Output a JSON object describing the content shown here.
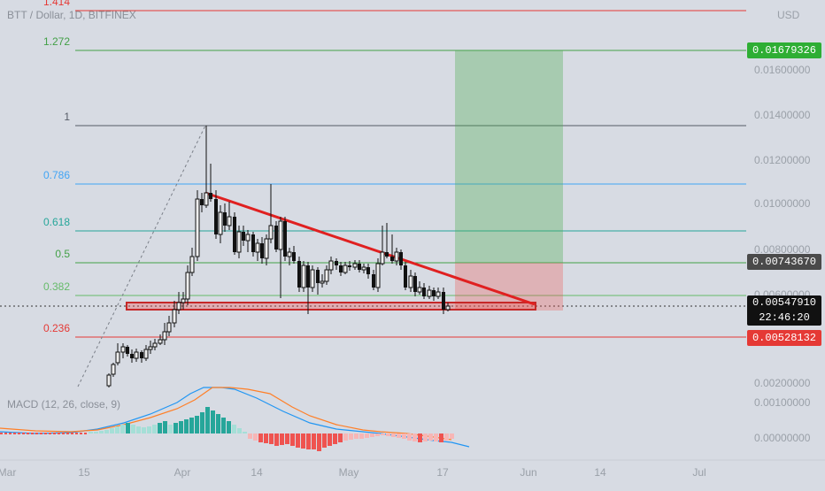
{
  "header": {
    "title": "BTT / Dollar, 1D, BITFINEX",
    "currency": "USD"
  },
  "macd_label": "MACD (12, 26, close, 9)",
  "fib_levels": [
    {
      "label": "1.414",
      "color": "#e53935"
    },
    {
      "label": "1.272",
      "color": "#43a047"
    },
    {
      "label": "1",
      "color": "#555b66"
    },
    {
      "label": "0.786",
      "color": "#42a5f5"
    },
    {
      "label": "0.618",
      "color": "#26a69a"
    },
    {
      "label": "0.5",
      "color": "#43a047"
    },
    {
      "label": "0.382",
      "color": "#66bb6a"
    },
    {
      "label": "0.236",
      "color": "#e53935"
    }
  ],
  "price_axis": [
    "0.01600000",
    "0.01400000",
    "0.01200000",
    "0.01000000",
    "0.00800000",
    "0.00600000",
    "0.00200000",
    "0.00100000",
    "0.00000000"
  ],
  "price_tags": {
    "target": {
      "value": "0.01679326",
      "color": "#2eae34"
    },
    "entry": {
      "value": "0.00743670",
      "color": "#4a4a4a"
    },
    "last": {
      "value": "0.00547910",
      "countdown": "22:46:20",
      "color": "#111111"
    },
    "stop": {
      "value": "0.00528132",
      "color": "#e53935"
    }
  },
  "time_axis": [
    "Mar",
    "15",
    "Apr",
    "14",
    "May",
    "17",
    "Jun",
    "14",
    "Jul"
  ],
  "chart_data": {
    "type": "candlestick",
    "symbol": "BTT / Dollar",
    "interval": "1D",
    "exchange": "BITFINEX",
    "fib_values": [
      1.414,
      1.272,
      1,
      0.786,
      0.618,
      0.5,
      0.382,
      0.236
    ],
    "pattern": "descending-triangle",
    "position": {
      "target": 0.01679326,
      "entry": 0.0074367,
      "stop": 0.00528132
    },
    "last_price": 0.0054791
  }
}
